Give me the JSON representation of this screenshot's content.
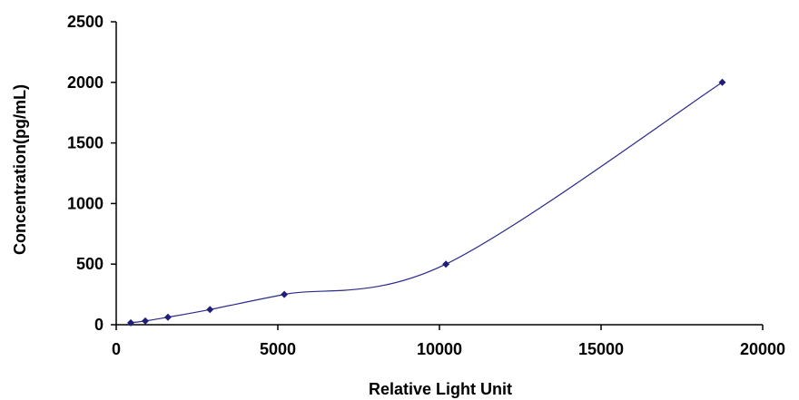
{
  "chart_data": {
    "type": "scatter",
    "title": "",
    "xlabel": "Relative Light Unit",
    "ylabel": "Concentration(pg/mL)",
    "xlim": [
      0,
      20000
    ],
    "ylim": [
      0,
      2500
    ],
    "x_ticks": [
      "0",
      "5000",
      "10000",
      "15000",
      "20000"
    ],
    "y_ticks": [
      "0",
      "500",
      "1000",
      "1500",
      "2000",
      "2500"
    ],
    "grid": false,
    "legend": "none",
    "series": [
      {
        "x": [
          450,
          900,
          1600,
          2900,
          5200,
          10200,
          18750
        ],
        "y": [
          16,
          31,
          62,
          125,
          250,
          500,
          2000
        ],
        "marker": "diamond",
        "trend_line": "smooth"
      }
    ],
    "colors": {
      "line": "#2a2a8c",
      "marker": "#1f1f7a",
      "axis": "#000000"
    }
  }
}
